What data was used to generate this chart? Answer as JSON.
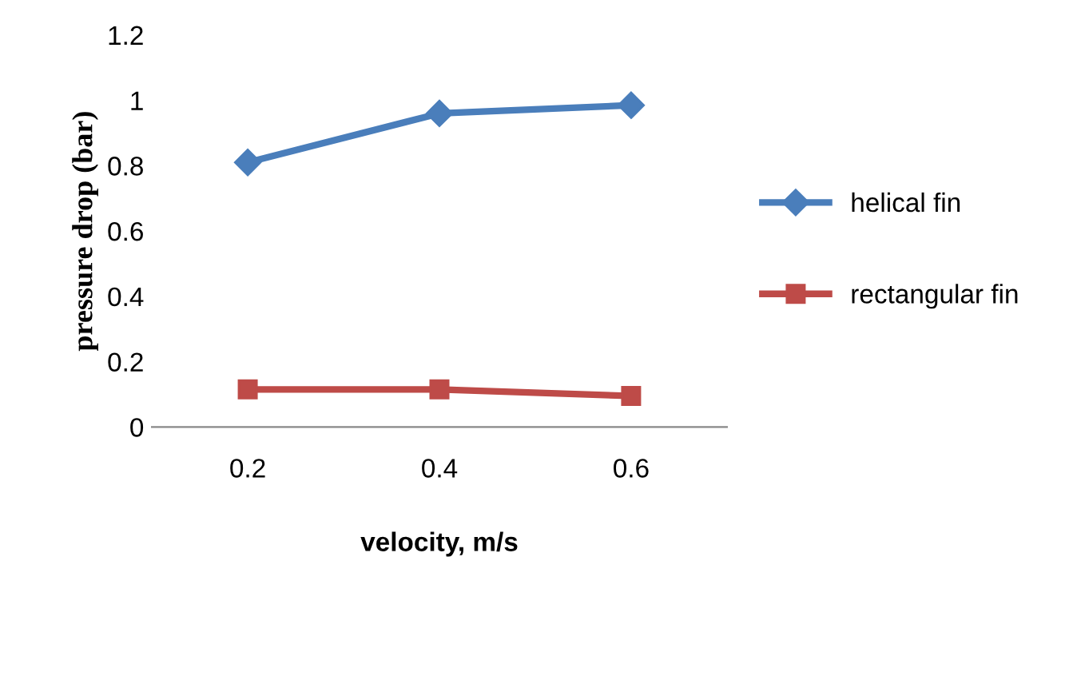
{
  "chart_data": {
    "type": "line",
    "xlabel": "velocity, m/s",
    "ylabel": "pressure drop (bar)",
    "categories": [
      "0.2",
      "0.4",
      "0.6"
    ],
    "series": [
      {
        "name": "helical fin",
        "color": "#4a7ebb",
        "values": [
          0.81,
          0.96,
          0.985
        ],
        "marker": "diamond"
      },
      {
        "name": "rectangular fin",
        "color": "#be4b48",
        "values": [
          0.115,
          0.115,
          0.095
        ],
        "marker": "square"
      }
    ],
    "ylim": [
      0,
      1.2
    ],
    "yticks": [
      0,
      0.2,
      0.4,
      0.6,
      0.8,
      1,
      1.2
    ],
    "grid": false,
    "legend": "right",
    "line_style": "solid"
  }
}
